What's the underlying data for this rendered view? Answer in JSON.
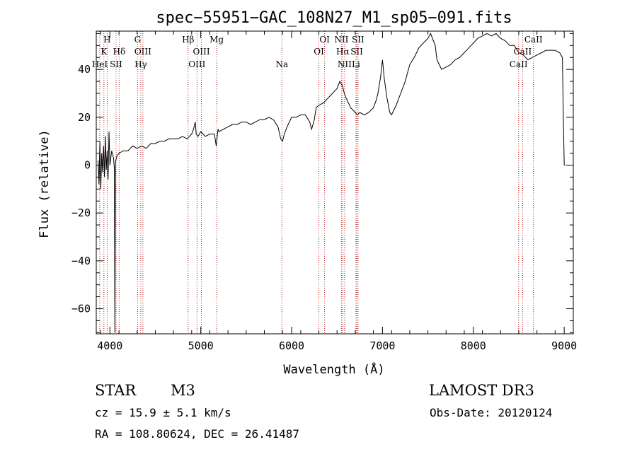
{
  "chart_data": {
    "type": "line",
    "title": "spec−55951−GAC_108N27_M1_sp05−091.fits",
    "xlabel": "Wavelength (Å)",
    "ylabel": "Flux (relative)",
    "xlim": [
      3850,
      9100
    ],
    "ylim": [
      -70.5,
      56
    ],
    "xticks": [
      4000,
      5000,
      6000,
      7000,
      8000,
      9000
    ],
    "xtick_labels": [
      "4000",
      "5000",
      "6000",
      "7000",
      "8000",
      "9000"
    ],
    "yticks": [
      -60,
      -40,
      -20,
      0,
      20,
      40
    ],
    "ytick_labels": [
      "−60",
      "−40",
      "−20",
      "0",
      "20",
      "40"
    ],
    "series": [
      {
        "name": "flux",
        "x": [
          3870,
          3880,
          3890,
          3900,
          3910,
          3920,
          3930,
          3940,
          3950,
          3960,
          3970,
          3980,
          3990,
          4000,
          4020,
          4040,
          4050,
          4055,
          4060,
          4065,
          4080,
          4100,
          4150,
          4200,
          4250,
          4300,
          4350,
          4400,
          4450,
          4500,
          4550,
          4600,
          4650,
          4700,
          4750,
          4800,
          4850,
          4900,
          4920,
          4940,
          4950,
          4970,
          5000,
          5050,
          5100,
          5150,
          5170,
          5190,
          5200,
          5250,
          5300,
          5350,
          5400,
          5450,
          5500,
          5550,
          5600,
          5650,
          5700,
          5750,
          5800,
          5850,
          5880,
          5900,
          5920,
          5950,
          6000,
          6050,
          6100,
          6150,
          6200,
          6220,
          6250,
          6270,
          6300,
          6350,
          6400,
          6450,
          6500,
          6530,
          6560,
          6580,
          6600,
          6650,
          6700,
          6720,
          6750,
          6800,
          6850,
          6900,
          6930,
          6950,
          6980,
          7000,
          7020,
          7050,
          7080,
          7100,
          7150,
          7200,
          7250,
          7300,
          7350,
          7400,
          7450,
          7500,
          7530,
          7550,
          7580,
          7600,
          7650,
          7700,
          7750,
          7800,
          7850,
          7900,
          7950,
          8000,
          8050,
          8100,
          8150,
          8200,
          8250,
          8300,
          8350,
          8400,
          8450,
          8500,
          8550,
          8600,
          8650,
          8700,
          8750,
          8800,
          8850,
          8900,
          8950,
          8980,
          8990,
          9000,
          9005,
          9010
        ],
        "y": [
          2,
          -8,
          10,
          -10,
          5,
          -3,
          8,
          -5,
          12,
          -2,
          6,
          -6,
          14,
          0,
          6,
          3,
          -2,
          -70,
          0,
          2,
          4,
          5,
          6,
          6,
          8,
          7,
          8,
          7,
          9,
          9,
          10,
          10,
          11,
          11,
          11,
          12,
          11,
          13,
          15,
          18,
          13,
          12,
          14,
          12,
          13,
          13,
          8,
          15,
          14,
          15,
          16,
          17,
          17,
          18,
          18,
          17,
          18,
          19,
          19,
          20,
          19,
          16,
          11,
          10,
          13,
          16,
          20,
          20,
          21,
          21,
          18,
          15,
          19,
          24,
          25,
          26,
          28,
          30,
          32,
          35,
          33,
          30,
          28,
          24,
          22,
          21,
          22,
          21,
          22,
          24,
          27,
          30,
          37,
          44,
          36,
          28,
          22,
          21,
          25,
          30,
          35,
          42,
          45,
          49,
          51,
          53,
          55,
          53,
          50,
          44,
          40,
          41,
          42,
          44,
          45,
          47,
          49,
          51,
          53,
          54,
          55,
          54,
          55,
          53,
          52,
          50,
          50,
          47,
          46,
          44,
          45,
          46,
          47,
          48,
          48,
          48,
          47,
          45,
          20,
          0,
          0,
          0
        ]
      }
    ],
    "spectral_lines": [
      {
        "label": "H",
        "x": 3970,
        "row": 0
      },
      {
        "label": "K",
        "x": 3934,
        "row": 1
      },
      {
        "label": "HeI",
        "x": 3889,
        "row": 2
      },
      {
        "label": "SII",
        "x": 4068,
        "row": 2
      },
      {
        "label": "Hδ",
        "x": 4102,
        "row": 1
      },
      {
        "label": "G",
        "x": 4305,
        "row": 0
      },
      {
        "label": "OIII",
        "x": 4363,
        "row": 1
      },
      {
        "label": "Hγ",
        "x": 4340,
        "row": 2
      },
      {
        "label": "Hβ",
        "x": 4861,
        "row": 0
      },
      {
        "label": "OIII",
        "x": 5007,
        "row": 1
      },
      {
        "label": "OIII",
        "x": 4959,
        "row": 2
      },
      {
        "label": "Mg",
        "x": 5175,
        "row": 0
      },
      {
        "label": "Na",
        "x": 5893,
        "row": 2
      },
      {
        "label": "OI",
        "x": 6363,
        "row": 0
      },
      {
        "label": "OI",
        "x": 6300,
        "row": 1
      },
      {
        "label": "NII",
        "x": 6548,
        "row": 0
      },
      {
        "label": "SII",
        "x": 6731,
        "row": 0
      },
      {
        "label": "Hα",
        "x": 6563,
        "row": 1
      },
      {
        "label": "SII",
        "x": 6717,
        "row": 1
      },
      {
        "label": "NII",
        "x": 6583,
        "row": 2
      },
      {
        "label": "Li",
        "x": 6708,
        "row": 2
      },
      {
        "label": "CaII",
        "x": 8662,
        "row": 0
      },
      {
        "label": "CaII",
        "x": 8542,
        "row": 1
      },
      {
        "label": "CaII",
        "x": 8498,
        "row": 2
      }
    ]
  },
  "info": {
    "object_class": "STAR",
    "subclass": "M3",
    "survey": "LAMOST DR3",
    "cz": "cz = 15.9 ± 5.1 km/s",
    "obs_date": "Obs-Date: 20120124",
    "coords": "RA = 108.80624, DEC =  26.41487"
  },
  "colors": {
    "line_marker": "#b22222",
    "spectrum": "#000000",
    "axes": "#000000"
  }
}
